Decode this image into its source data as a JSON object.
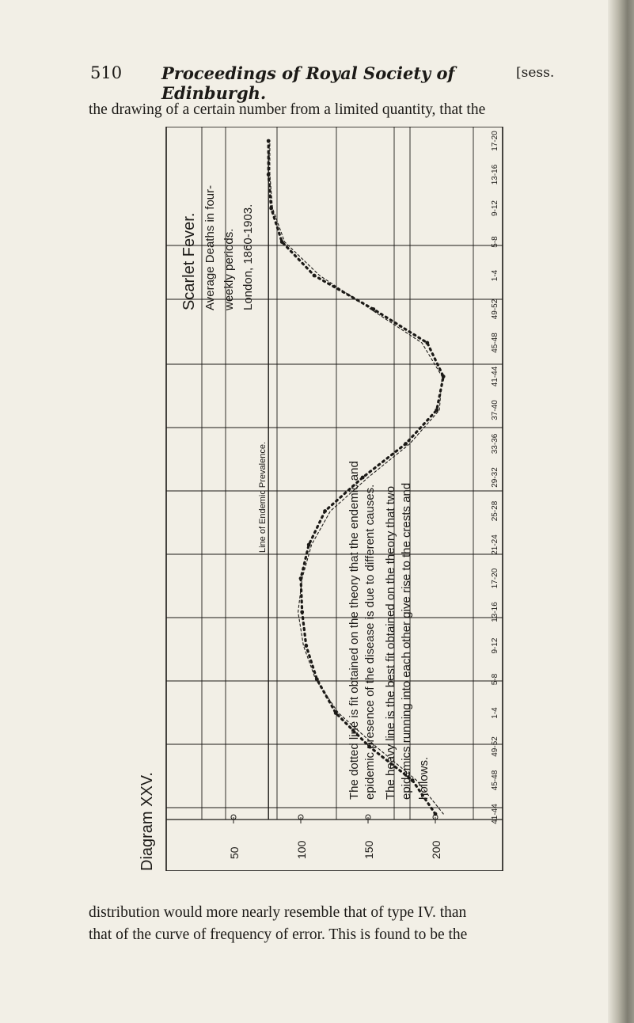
{
  "header": {
    "page_number": "510",
    "journal_title": "Proceedings of Royal Society of Edinburgh.",
    "session": "[sess."
  },
  "body_text": {
    "line_top": "the drawing of a certain number from a limited quantity, that the",
    "line_bottom_1": "distribution would more nearly resemble that of type IV. than",
    "line_bottom_2": "that of the curve of frequency of error. This is found to be the"
  },
  "figure": {
    "diagram_label": "Diagram XXV.",
    "title": "Scarlet Fever.",
    "subtitle_lines": [
      "Average Deaths in four-",
      "weekly periods.",
      "London, 1860-1903."
    ],
    "endemic_label": "Line of Endemic Prevalence.",
    "note_lines": [
      "The dotted line is fit obtained on the theory that the endemic and",
      "epidemic presence of the disease is due to different causes.",
      "The heavy line is the best fit obtained on the theory that two",
      "epidemics running into each other give rise to the crests and",
      "hollows."
    ],
    "colors": {
      "ink": "#1c1a17",
      "paper": "#f2efe6"
    }
  },
  "chart_data": {
    "type": "line",
    "title": "Scarlet Fever.",
    "subtitle": "Average Deaths in four-weekly periods. London, 1860-1903.",
    "xlabel": "",
    "ylabel": "",
    "ylim": [
      0,
      250
    ],
    "y_ticks": [
      200,
      150,
      100,
      50
    ],
    "x_tick_labels": [
      "41-44",
      "45-48",
      "49-52",
      "1-4",
      "5-8",
      "9-12",
      "13-16",
      "17-20",
      "21-24",
      "25-28",
      "29-32",
      "33-36",
      "37-40",
      "41-44",
      "45-48",
      "49-52",
      "1-4",
      "5-8",
      "9-12",
      "13-16",
      "17-20"
    ],
    "grid": true,
    "endemic_level": 76,
    "series": [
      {
        "style": "heavy-dotted",
        "x": [
          0,
          1,
          2,
          3,
          4,
          5,
          6,
          7,
          8,
          9,
          10,
          11,
          12,
          13,
          14,
          15,
          16,
          17,
          18,
          19,
          20
        ],
        "values": [
          200,
          183,
          151,
          126,
          112,
          104,
          101,
          100,
          106,
          118,
          146,
          178,
          201,
          206,
          194,
          154,
          110,
          86,
          78,
          76,
          76
        ]
      },
      {
        "style": "dotted",
        "x": [
          0,
          1,
          2,
          3,
          4,
          5,
          6,
          7,
          8,
          9,
          10,
          11,
          12,
          13,
          14,
          15,
          16,
          17,
          18,
          19,
          20
        ],
        "values": [
          206,
          186,
          156,
          128,
          111,
          102,
          98,
          101,
          108,
          122,
          150,
          181,
          203,
          205,
          190,
          152,
          114,
          88,
          79,
          77,
          77
        ]
      }
    ]
  }
}
